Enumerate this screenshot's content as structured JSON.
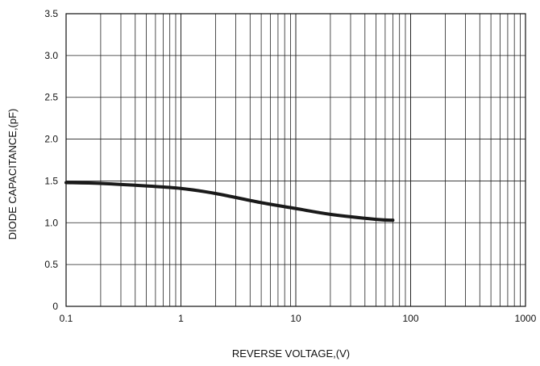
{
  "chart_data": {
    "type": "line",
    "xlabel": "REVERSE VOLTAGE,(V)",
    "ylabel": "DIODE CAPACITANCE,(pF)",
    "x_scale": "log",
    "xlim": [
      0.1,
      1000
    ],
    "ylim": [
      0,
      3.5
    ],
    "x_ticks": [
      {
        "value": 0.1,
        "label": "0.1"
      },
      {
        "value": 1,
        "label": "1"
      },
      {
        "value": 10,
        "label": "10"
      },
      {
        "value": 100,
        "label": "100"
      },
      {
        "value": 1000,
        "label": "1000"
      }
    ],
    "y_ticks": [
      {
        "value": 0,
        "label": "0"
      },
      {
        "value": 0.5,
        "label": "0.5"
      },
      {
        "value": 1.0,
        "label": "1.0"
      },
      {
        "value": 1.5,
        "label": "1.5"
      },
      {
        "value": 2.0,
        "label": "2.0"
      },
      {
        "value": 2.5,
        "label": "2.5"
      },
      {
        "value": 3.0,
        "label": "3.0"
      },
      {
        "value": 3.5,
        "label": "3.5"
      }
    ],
    "grid": true,
    "series": [
      {
        "color": "#1a1a1a",
        "points": [
          {
            "x": 0.1,
            "y": 1.48
          },
          {
            "x": 0.2,
            "y": 1.47
          },
          {
            "x": 0.5,
            "y": 1.44
          },
          {
            "x": 1,
            "y": 1.41
          },
          {
            "x": 2,
            "y": 1.35
          },
          {
            "x": 5,
            "y": 1.24
          },
          {
            "x": 10,
            "y": 1.17
          },
          {
            "x": 20,
            "y": 1.1
          },
          {
            "x": 50,
            "y": 1.04
          },
          {
            "x": 70,
            "y": 1.03
          }
        ]
      }
    ]
  }
}
